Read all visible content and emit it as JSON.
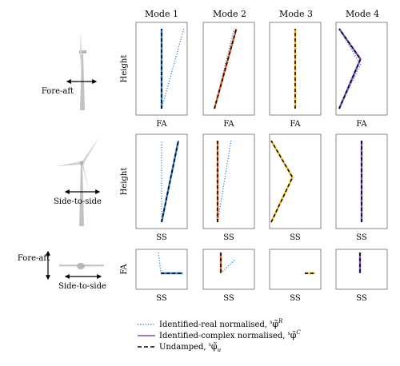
{
  "mode_titles": [
    "Mode 1",
    "Mode 2",
    "Mode 3",
    "Mode 4"
  ],
  "rows": [
    {
      "illustration": "turbine-side-view",
      "motion_label": "Fore-aft",
      "ylabel": "Height",
      "xlabel": "FA",
      "panels": [
        {
          "real": [
            [
              0,
              0
            ],
            [
              0.99,
              1
            ]
          ],
          "complex": [
            [
              0,
              0
            ],
            [
              0,
              1
            ]
          ],
          "undamped": [
            [
              0,
              0
            ],
            [
              0,
              1
            ]
          ]
        },
        {
          "real": [
            [
              0,
              0
            ],
            [
              0.88,
              1
            ]
          ],
          "complex": [
            [
              0,
              0
            ],
            [
              0.98,
              1
            ]
          ],
          "undamped": [
            [
              0,
              0
            ],
            [
              0.98,
              1
            ]
          ]
        },
        {
          "real": [
            [
              0,
              0
            ],
            [
              0,
              1
            ]
          ],
          "complex": [
            [
              0,
              0
            ],
            [
              0,
              1
            ]
          ],
          "undamped": [
            [
              0,
              0
            ],
            [
              0,
              1
            ]
          ]
        },
        {
          "real": [
            [
              0,
              0
            ],
            [
              0.95,
              0.55
            ],
            [
              0,
              1
            ]
          ],
          "complex": [
            [
              0,
              0
            ],
            [
              0.95,
              0.62
            ],
            [
              0,
              1
            ]
          ],
          "undamped": [
            [
              0,
              0
            ],
            [
              0.95,
              0.62
            ],
            [
              0,
              1
            ]
          ]
        }
      ]
    },
    {
      "illustration": "turbine-front-view",
      "motion_label": "Side-to-side",
      "ylabel": "Height",
      "xlabel": "SS",
      "panels": [
        {
          "real": [
            [
              0,
              0
            ],
            [
              0,
              1
            ]
          ],
          "complex": [
            [
              0,
              0
            ],
            [
              0.75,
              1
            ]
          ],
          "undamped": [
            [
              0,
              0
            ],
            [
              0.75,
              1
            ]
          ]
        },
        {
          "real": [
            [
              0,
              0
            ],
            [
              0.6,
              1
            ]
          ],
          "complex": [
            [
              0,
              0
            ],
            [
              0,
              1
            ]
          ],
          "undamped": [
            [
              0,
              0
            ],
            [
              0,
              1
            ]
          ]
        },
        {
          "real": [
            [
              0,
              0
            ],
            [
              0.95,
              0.55
            ],
            [
              0,
              1
            ]
          ],
          "complex": [
            [
              0,
              0
            ],
            [
              0.95,
              0.55
            ],
            [
              0,
              1
            ]
          ],
          "undamped": [
            [
              0,
              0
            ],
            [
              0.95,
              0.55
            ],
            [
              0,
              1
            ]
          ]
        },
        {
          "real": [
            [
              0,
              0
            ],
            [
              0,
              1
            ]
          ],
          "complex": [
            [
              0,
              0
            ],
            [
              0,
              1
            ]
          ],
          "undamped": [
            [
              0,
              0
            ],
            [
              0,
              1
            ]
          ]
        }
      ]
    },
    {
      "illustration": "turbine-top-view",
      "motion_label": "Fore-aft",
      "motion_label_2": "Side-to-side",
      "ylabel": "FA",
      "xlabel": "SS",
      "panels": [
        {
          "real": [
            [
              0,
              1
            ],
            [
              0.1,
              0
            ]
          ],
          "complex": [
            [
              0.1,
              0
            ],
            [
              0.95,
              0
            ]
          ],
          "undamped": [
            [
              0.1,
              0
            ],
            [
              0.95,
              0
            ]
          ]
        },
        {
          "real": [
            [
              0,
              0
            ],
            [
              0.55,
              0.65
            ]
          ],
          "complex": [
            [
              0,
              1
            ],
            [
              0,
              0
            ]
          ],
          "undamped": [
            [
              0,
              1
            ],
            [
              0,
              0
            ]
          ]
        },
        {
          "real": [
            [
              0.5,
              0
            ],
            [
              0.9,
              0
            ]
          ],
          "complex": [
            [
              0.5,
              0
            ],
            [
              0.9,
              0
            ]
          ],
          "undamped": [
            [
              0.5,
              0
            ],
            [
              0.9,
              0
            ]
          ]
        },
        {
          "real": [
            [
              0,
              1
            ],
            [
              0,
              0
            ]
          ],
          "complex": [
            [
              0,
              1
            ],
            [
              0,
              0
            ]
          ],
          "undamped": [
            [
              0,
              1
            ],
            [
              0,
              0
            ]
          ]
        }
      ]
    }
  ],
  "mode_colors": [
    "#2e7fd0",
    "#e8632c",
    "#f2b705",
    "#7a4fc9"
  ],
  "legend": [
    {
      "style": "dotted",
      "label": "Identified-real normalised, ",
      "symbol": "φ̃",
      "pre": "s",
      "sup": "R",
      "color": "#3a86c8"
    },
    {
      "style": "solid",
      "label": "Identified-complex normalised, ",
      "symbol": "φ̃",
      "pre": "s",
      "sup": "C",
      "color": "#7a4fc9"
    },
    {
      "style": "dashed",
      "label": "Undamped, ",
      "symbol": "φ̃",
      "pre": "s",
      "sup": "",
      "sub": "u",
      "color": "#000000"
    }
  ]
}
